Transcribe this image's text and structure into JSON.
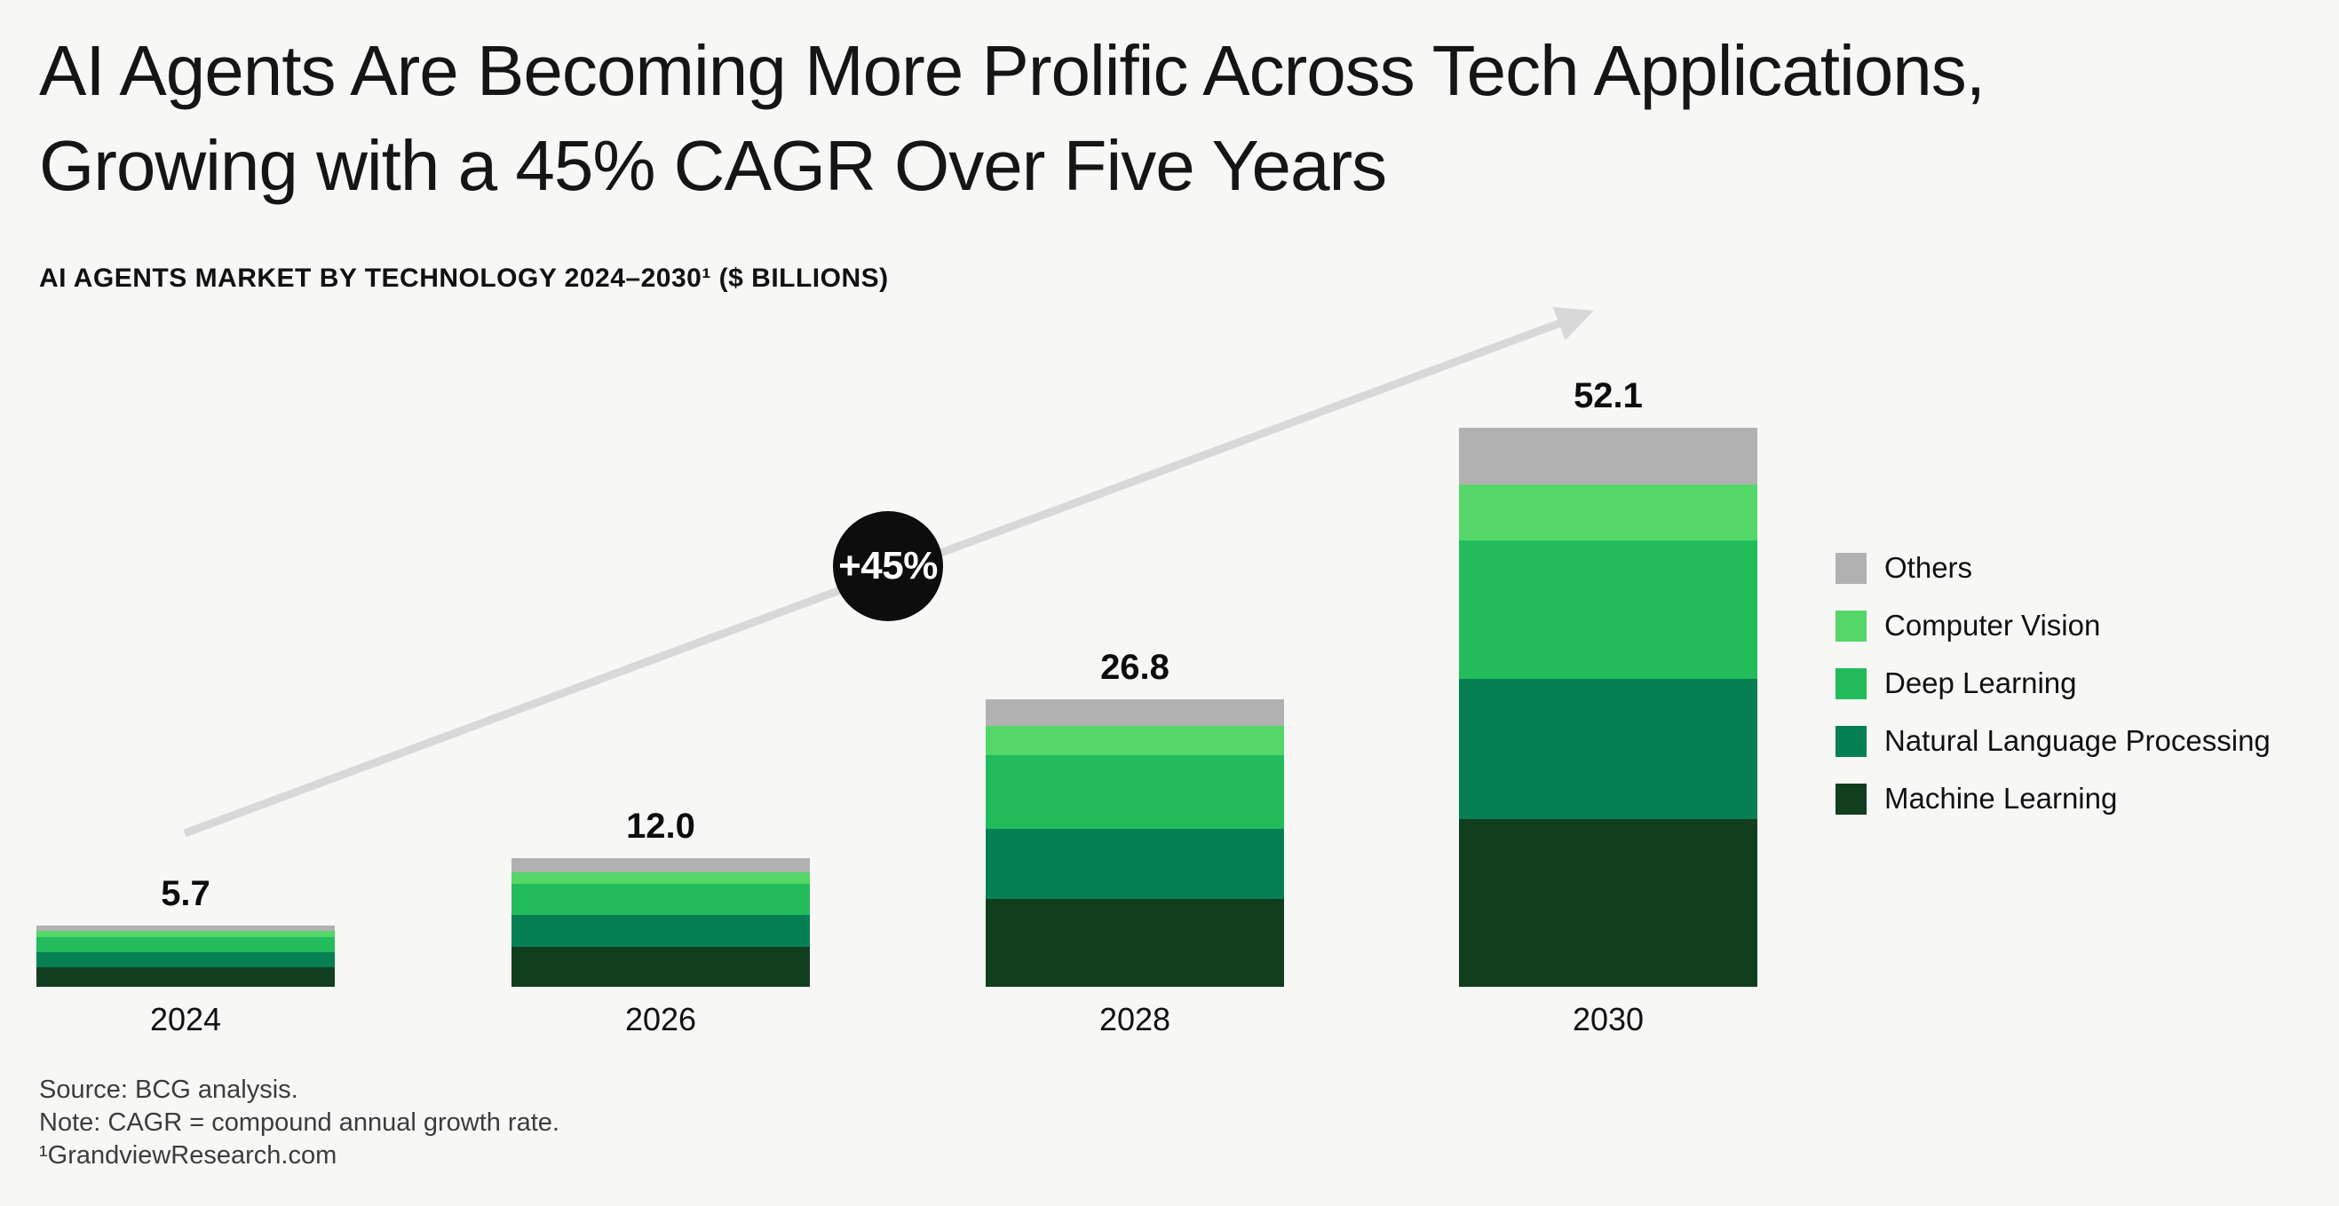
{
  "page": {
    "background": "#f7f7f5"
  },
  "header": {
    "title_line1": "AI Agents Are Becoming More Prolific Across Tech Applications,",
    "title_line2": "Growing with a 45% CAGR Over Five Years",
    "subtitle": "AI AGENTS MARKET BY TECHNOLOGY 2024–2030¹ ($ BILLIONS)"
  },
  "chart_data": {
    "type": "bar",
    "stacked": true,
    "title": "AI AGENTS MARKET BY TECHNOLOGY 2024–2030¹ ($ BILLIONS)",
    "categories": [
      "2024",
      "2026",
      "2028",
      "2030"
    ],
    "series": [
      {
        "name": "Machine Learning",
        "color": "#123e20",
        "values": [
          1.8,
          3.7,
          8.2,
          15.6
        ]
      },
      {
        "name": "Natural Language Processing",
        "color": "#067f54",
        "values": [
          1.4,
          3.0,
          6.5,
          13.1
        ]
      },
      {
        "name": "Deep Learning",
        "color": "#23bc5c",
        "values": [
          1.4,
          2.9,
          6.9,
          12.9
        ]
      },
      {
        "name": "Computer Vision",
        "color": "#54d669",
        "values": [
          0.6,
          1.1,
          2.7,
          5.2
        ]
      },
      {
        "name": "Others",
        "color": "#b1b1b1",
        "values": [
          0.5,
          1.3,
          2.5,
          5.3
        ]
      }
    ],
    "totals": [
      5.7,
      12.0,
      26.8,
      52.1
    ],
    "totals_display": [
      "5.7",
      "12.0",
      "26.8",
      "52.1"
    ],
    "growth_badge": "+45%",
    "legend_position": "right",
    "legend": [
      {
        "label": "Others",
        "color": "#b1b1b1"
      },
      {
        "label": "Computer Vision",
        "color": "#54d669"
      },
      {
        "label": "Deep Learning",
        "color": "#23bc5c"
      },
      {
        "label": "Natural Language Processing",
        "color": "#067f54"
      },
      {
        "label": "Machine Learning",
        "color": "#123e20"
      }
    ],
    "arrow_color": "#d8d8d8",
    "badge_color": "#0d0d0d",
    "value_axis_hidden": true
  },
  "footnotes": {
    "source": "Source: BCG analysis.",
    "note": "Note: CAGR = compound annual growth rate.",
    "reference": "¹GrandviewResearch.com"
  }
}
